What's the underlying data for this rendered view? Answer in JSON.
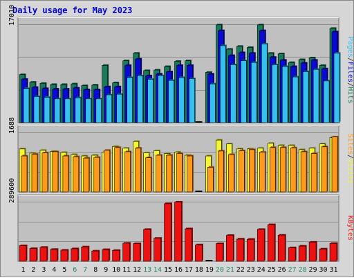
{
  "chart_data": {
    "type": "bar",
    "title": "Daily usage for May 2023",
    "categories": [
      "1",
      "2",
      "3",
      "4",
      "5",
      "6",
      "7",
      "8",
      "9",
      "10",
      "11",
      "12",
      "13",
      "14",
      "15",
      "16",
      "17",
      "18",
      "19",
      "20",
      "21",
      "22",
      "23",
      "24",
      "25",
      "26",
      "27",
      "28",
      "29",
      "30",
      "31"
    ],
    "weekend_days": [
      6,
      7,
      13,
      14,
      20,
      21,
      27,
      28
    ],
    "colors": {
      "title": "#0000cc",
      "hits": "#1a7a5c",
      "files": "#0a0ad8",
      "pages": "#35c0f0",
      "visits": "#f5f532",
      "sites": "#ff9a1a",
      "kbytes": "#ee1111",
      "weekend_label": "#2a8a6a",
      "panel": "#c0c0c0",
      "outer": "#d6d6d6"
    },
    "panels": [
      {
        "ylabel_parts": [
          "Pages",
          "/",
          "Files",
          "/",
          "Hits"
        ],
        "ylabel_colors": [
          "#35c0f0",
          "#1e1e1e",
          "#0a0ad8",
          "#1e1e1e",
          "#1a7a5c"
        ],
        "max_label": "17010",
        "ylim": [
          0,
          17010
        ],
        "series": [
          {
            "name": "Hits",
            "values": [
              8300,
              7000,
              6800,
              6600,
              6600,
              6700,
              6400,
              6500,
              9900,
              6900,
              10700,
              12000,
              9000,
              9100,
              9700,
              10600,
              10700,
              0,
              8700,
              16900,
              12700,
              13200,
              13000,
              16900,
              12000,
              11900,
              10400,
              10900,
              11200,
              9900,
              16300
            ]
          },
          {
            "name": "Files",
            "values": [
              7500,
              6100,
              5900,
              5800,
              5800,
              6000,
              5700,
              5700,
              6200,
              6200,
              9900,
              11000,
              8100,
              8400,
              8800,
              9900,
              9900,
              0,
              8400,
              15900,
              11600,
              12100,
              12000,
              15900,
              11300,
              10800,
              9700,
              10300,
              10800,
              9300,
              15700
            ]
          },
          {
            "name": "Pages",
            "values": [
              5900,
              4500,
              4400,
              4100,
              4100,
              4300,
              4100,
              4100,
              4800,
              4900,
              7800,
              8100,
              7500,
              8100,
              7300,
              7800,
              7600,
              0,
              6700,
              13300,
              10000,
              10700,
              10400,
              13600,
              10000,
              9700,
              7900,
              8800,
              9200,
              7200,
              12000
            ]
          }
        ]
      },
      {
        "ylabel_parts": [
          "Sites",
          "/",
          "Visits"
        ],
        "ylabel_colors": [
          "#ff9a1a",
          "#1e1e1e",
          "#f5f532"
        ],
        "max_label": "1688",
        "ylim": [
          0,
          1688
        ],
        "series": [
          {
            "name": "Visits",
            "values": [
              1220,
              1100,
              1180,
              1150,
              1120,
              1060,
              1020,
              1040,
              1130,
              1290,
              1240,
              1430,
              1110,
              1170,
              1090,
              1130,
              1040,
              0,
              1020,
              1470,
              1360,
              1220,
              1220,
              1240,
              1380,
              1320,
              1320,
              1200,
              1240,
              1360,
              1540
            ]
          },
          {
            "name": "Sites",
            "values": [
              1020,
              1070,
              1110,
              1140,
              1020,
              1000,
              960,
              980,
              1180,
              1260,
              1140,
              1240,
              970,
              1040,
              1040,
              1090,
              1020,
              0,
              700,
              1160,
              1060,
              1170,
              1200,
              1130,
              1260,
              1260,
              1250,
              1140,
              1090,
              1280,
              1560
            ]
          }
        ]
      },
      {
        "ylabel_parts": [
          "KBytes"
        ],
        "ylabel_colors": [
          "#ee1111"
        ],
        "max_label": "289600",
        "ylim": [
          0,
          289600
        ],
        "series": [
          {
            "name": "KBytes",
            "values": [
              76000,
              62000,
              68000,
              58000,
              54000,
              61000,
              70000,
              50000,
              57000,
              53000,
              88000,
              86000,
              155000,
              112000,
              280000,
              288000,
              158000,
              80000,
              0,
              86000,
              126000,
              108000,
              107000,
              155000,
              178000,
              127000,
              66000,
              74000,
              93000,
              60000,
              87000
            ]
          }
        ]
      }
    ]
  }
}
